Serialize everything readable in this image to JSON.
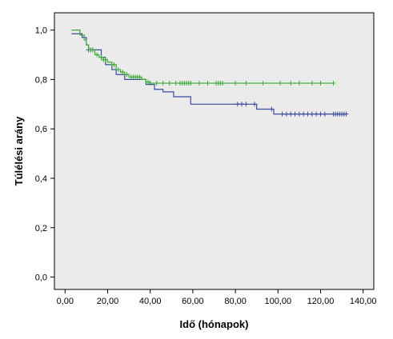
{
  "chart_data": {
    "type": "line",
    "subtype": "kaplan-meier-step",
    "title": "",
    "xlabel": "Idő (hónapok)",
    "ylabel": "Túlélési arány",
    "xlim": [
      -5,
      145
    ],
    "ylim": [
      -0.05,
      1.07
    ],
    "x_ticks": [
      0,
      20,
      40,
      60,
      80,
      100,
      120,
      140
    ],
    "x_tick_labels": [
      "0,00",
      "20,00",
      "40,00",
      "60,00",
      "80,00",
      "100,00",
      "120,00",
      "140,00"
    ],
    "y_ticks": [
      0,
      0.2,
      0.4,
      0.6,
      0.8,
      1.0
    ],
    "y_tick_labels": [
      "0,0",
      "0,2",
      "0,4",
      "0,6",
      "0,8",
      "1,0"
    ],
    "grid": false,
    "background": "#ebebeb",
    "series": [
      {
        "color": "#3a4ba0",
        "steps": [
          [
            3,
            0.985
          ],
          [
            8,
            0.97
          ],
          [
            10,
            0.94
          ],
          [
            11,
            0.92
          ],
          [
            17,
            0.89
          ],
          [
            19,
            0.86
          ],
          [
            22,
            0.84
          ],
          [
            24,
            0.82
          ],
          [
            28,
            0.8
          ],
          [
            38,
            0.78
          ],
          [
            42,
            0.76
          ],
          [
            46,
            0.75
          ],
          [
            51,
            0.73
          ],
          [
            59,
            0.7
          ],
          [
            88,
            0.7
          ],
          [
            90,
            0.68
          ],
          [
            98,
            0.66
          ],
          [
            132,
            0.66
          ]
        ],
        "censored": [
          [
            11,
            0.92
          ],
          [
            12,
            0.92
          ],
          [
            13,
            0.92
          ],
          [
            81,
            0.7
          ],
          [
            83,
            0.7
          ],
          [
            85,
            0.7
          ],
          [
            89,
            0.7
          ],
          [
            97,
            0.68
          ],
          [
            102,
            0.66
          ],
          [
            104,
            0.66
          ],
          [
            106,
            0.66
          ],
          [
            108,
            0.66
          ],
          [
            110,
            0.66
          ],
          [
            112,
            0.66
          ],
          [
            114,
            0.66
          ],
          [
            116,
            0.66
          ],
          [
            118,
            0.66
          ],
          [
            120,
            0.66
          ],
          [
            122,
            0.66
          ],
          [
            126,
            0.66
          ],
          [
            127,
            0.66
          ],
          [
            128,
            0.66
          ],
          [
            129,
            0.66
          ],
          [
            130,
            0.66
          ],
          [
            131,
            0.66
          ],
          [
            132,
            0.66
          ]
        ]
      },
      {
        "color": "#3aaa35",
        "steps": [
          [
            3,
            1.0
          ],
          [
            7,
            0.98
          ],
          [
            9,
            0.96
          ],
          [
            10,
            0.94
          ],
          [
            11,
            0.92
          ],
          [
            14,
            0.9
          ],
          [
            16,
            0.89
          ],
          [
            18,
            0.88
          ],
          [
            20,
            0.87
          ],
          [
            22,
            0.86
          ],
          [
            24,
            0.84
          ],
          [
            26,
            0.83
          ],
          [
            28,
            0.82
          ],
          [
            30,
            0.81
          ],
          [
            36,
            0.8
          ],
          [
            38,
            0.79
          ],
          [
            40,
            0.785
          ],
          [
            126,
            0.785
          ]
        ],
        "censored": [
          [
            12,
            0.92
          ],
          [
            13,
            0.92
          ],
          [
            15,
            0.9
          ],
          [
            17,
            0.89
          ],
          [
            18,
            0.88
          ],
          [
            19,
            0.88
          ],
          [
            22,
            0.86
          ],
          [
            23,
            0.86
          ],
          [
            25,
            0.84
          ],
          [
            27,
            0.83
          ],
          [
            29,
            0.82
          ],
          [
            31,
            0.81
          ],
          [
            32,
            0.81
          ],
          [
            33,
            0.81
          ],
          [
            34,
            0.81
          ],
          [
            35,
            0.81
          ],
          [
            39,
            0.79
          ],
          [
            40,
            0.785
          ],
          [
            43,
            0.785
          ],
          [
            46,
            0.785
          ],
          [
            49,
            0.785
          ],
          [
            52,
            0.785
          ],
          [
            54,
            0.785
          ],
          [
            55,
            0.785
          ],
          [
            56,
            0.785
          ],
          [
            57,
            0.785
          ],
          [
            58,
            0.785
          ],
          [
            59,
            0.785
          ],
          [
            63,
            0.785
          ],
          [
            67,
            0.785
          ],
          [
            71,
            0.785
          ],
          [
            72,
            0.785
          ],
          [
            73,
            0.785
          ],
          [
            74,
            0.785
          ],
          [
            80,
            0.785
          ],
          [
            85,
            0.785
          ],
          [
            93,
            0.785
          ],
          [
            101,
            0.785
          ],
          [
            106,
            0.785
          ],
          [
            110,
            0.785
          ],
          [
            116,
            0.785
          ],
          [
            120,
            0.785
          ],
          [
            126,
            0.785
          ]
        ]
      }
    ]
  }
}
